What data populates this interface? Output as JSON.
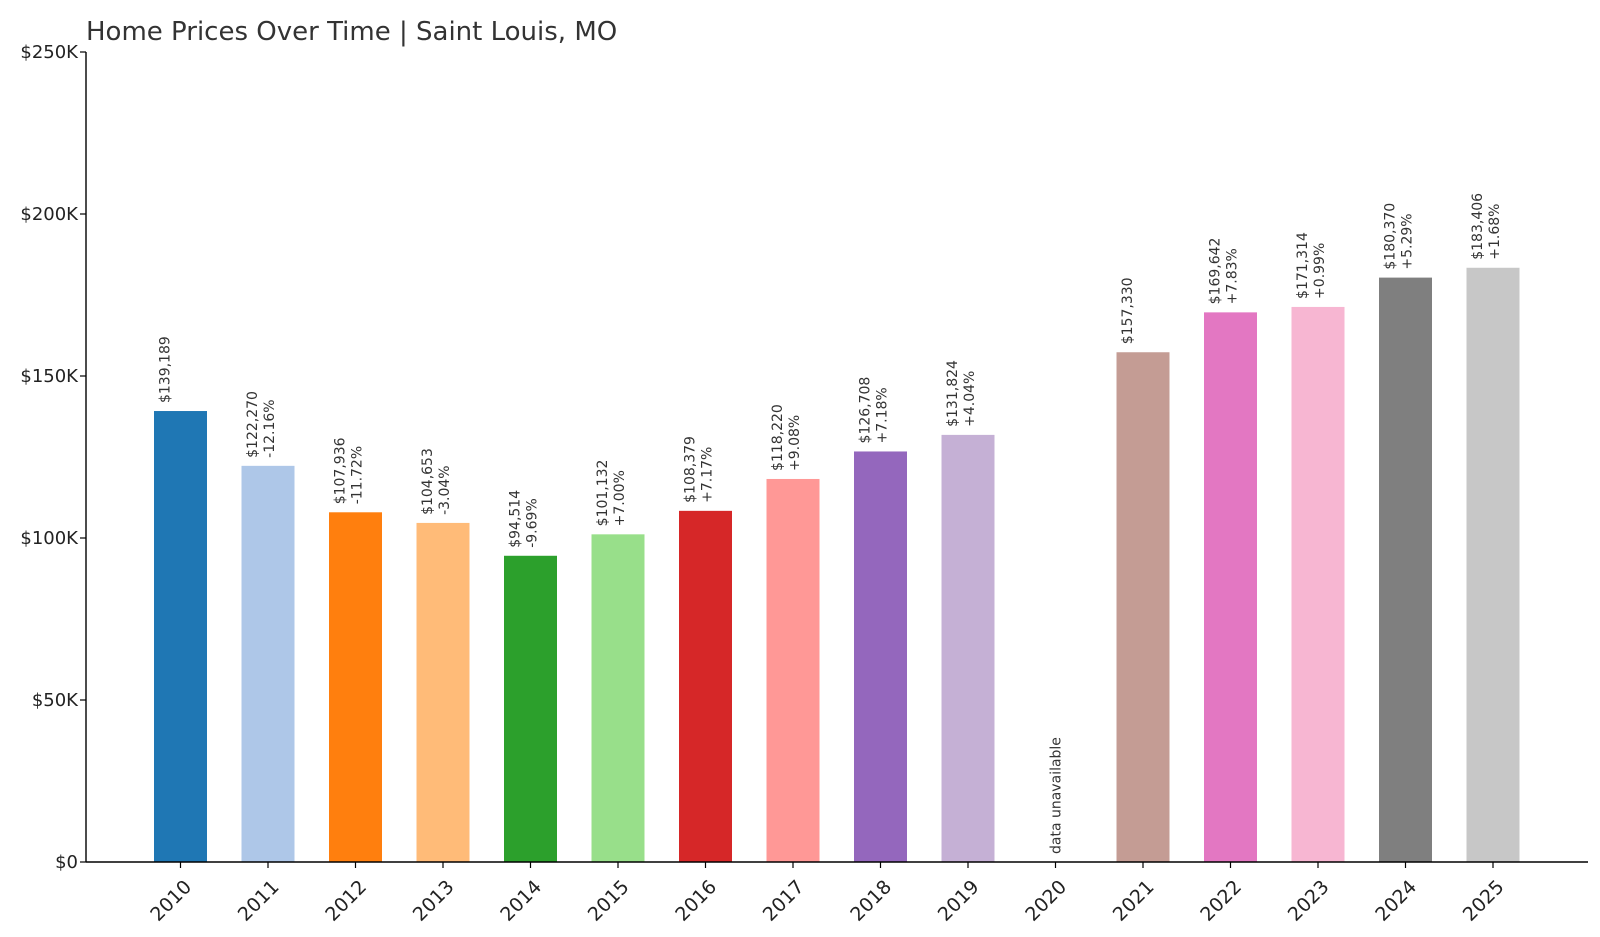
{
  "chart_data": {
    "type": "bar",
    "title": "Home Prices Over Time | Saint Louis, MO",
    "xlabel": "",
    "ylabel": "",
    "ylim": [
      0,
      250000
    ],
    "yticks": [
      0,
      50000,
      100000,
      150000,
      200000,
      250000
    ],
    "ytick_labels": [
      "$0",
      "$50K",
      "$100K",
      "$150K",
      "$200K",
      "$250K"
    ],
    "grid": false,
    "legend": "none",
    "categories": [
      "2010",
      "2011",
      "2012",
      "2013",
      "2014",
      "2015",
      "2016",
      "2017",
      "2018",
      "2019",
      "2020",
      "2021",
      "2022",
      "2023",
      "2024",
      "2025"
    ],
    "values": [
      139189,
      122270,
      107936,
      104653,
      94514,
      101132,
      108379,
      118220,
      126708,
      131824,
      null,
      157330,
      169642,
      171314,
      180370,
      183406
    ],
    "value_labels": [
      "$139,189",
      "$122,270",
      "$107,936",
      "$104,653",
      "$94,514",
      "$101,132",
      "$108,379",
      "$118,220",
      "$126,708",
      "$131,824",
      "",
      "$157,330",
      "$169,642",
      "$171,314",
      "$180,370",
      "$183,406"
    ],
    "change_labels": [
      "",
      "-12.16%",
      "-11.72%",
      "-3.04%",
      "-9.69%",
      "+7.00%",
      "+7.17%",
      "+9.08%",
      "+7.18%",
      "+4.04%",
      "",
      "",
      "+7.83%",
      "+0.99%",
      "+5.29%",
      "+1.68%"
    ],
    "missing_label": "data unavailable",
    "colors": [
      "#1f77b4",
      "#aec7e8",
      "#ff7f0e",
      "#ffbb78",
      "#2ca02c",
      "#98df8a",
      "#d62728",
      "#ff9896",
      "#9467bd",
      "#c5b0d5",
      "#8c564b",
      "#c49c94",
      "#e377c2",
      "#f7b6d2",
      "#7f7f7f",
      "#c7c7c7"
    ]
  }
}
